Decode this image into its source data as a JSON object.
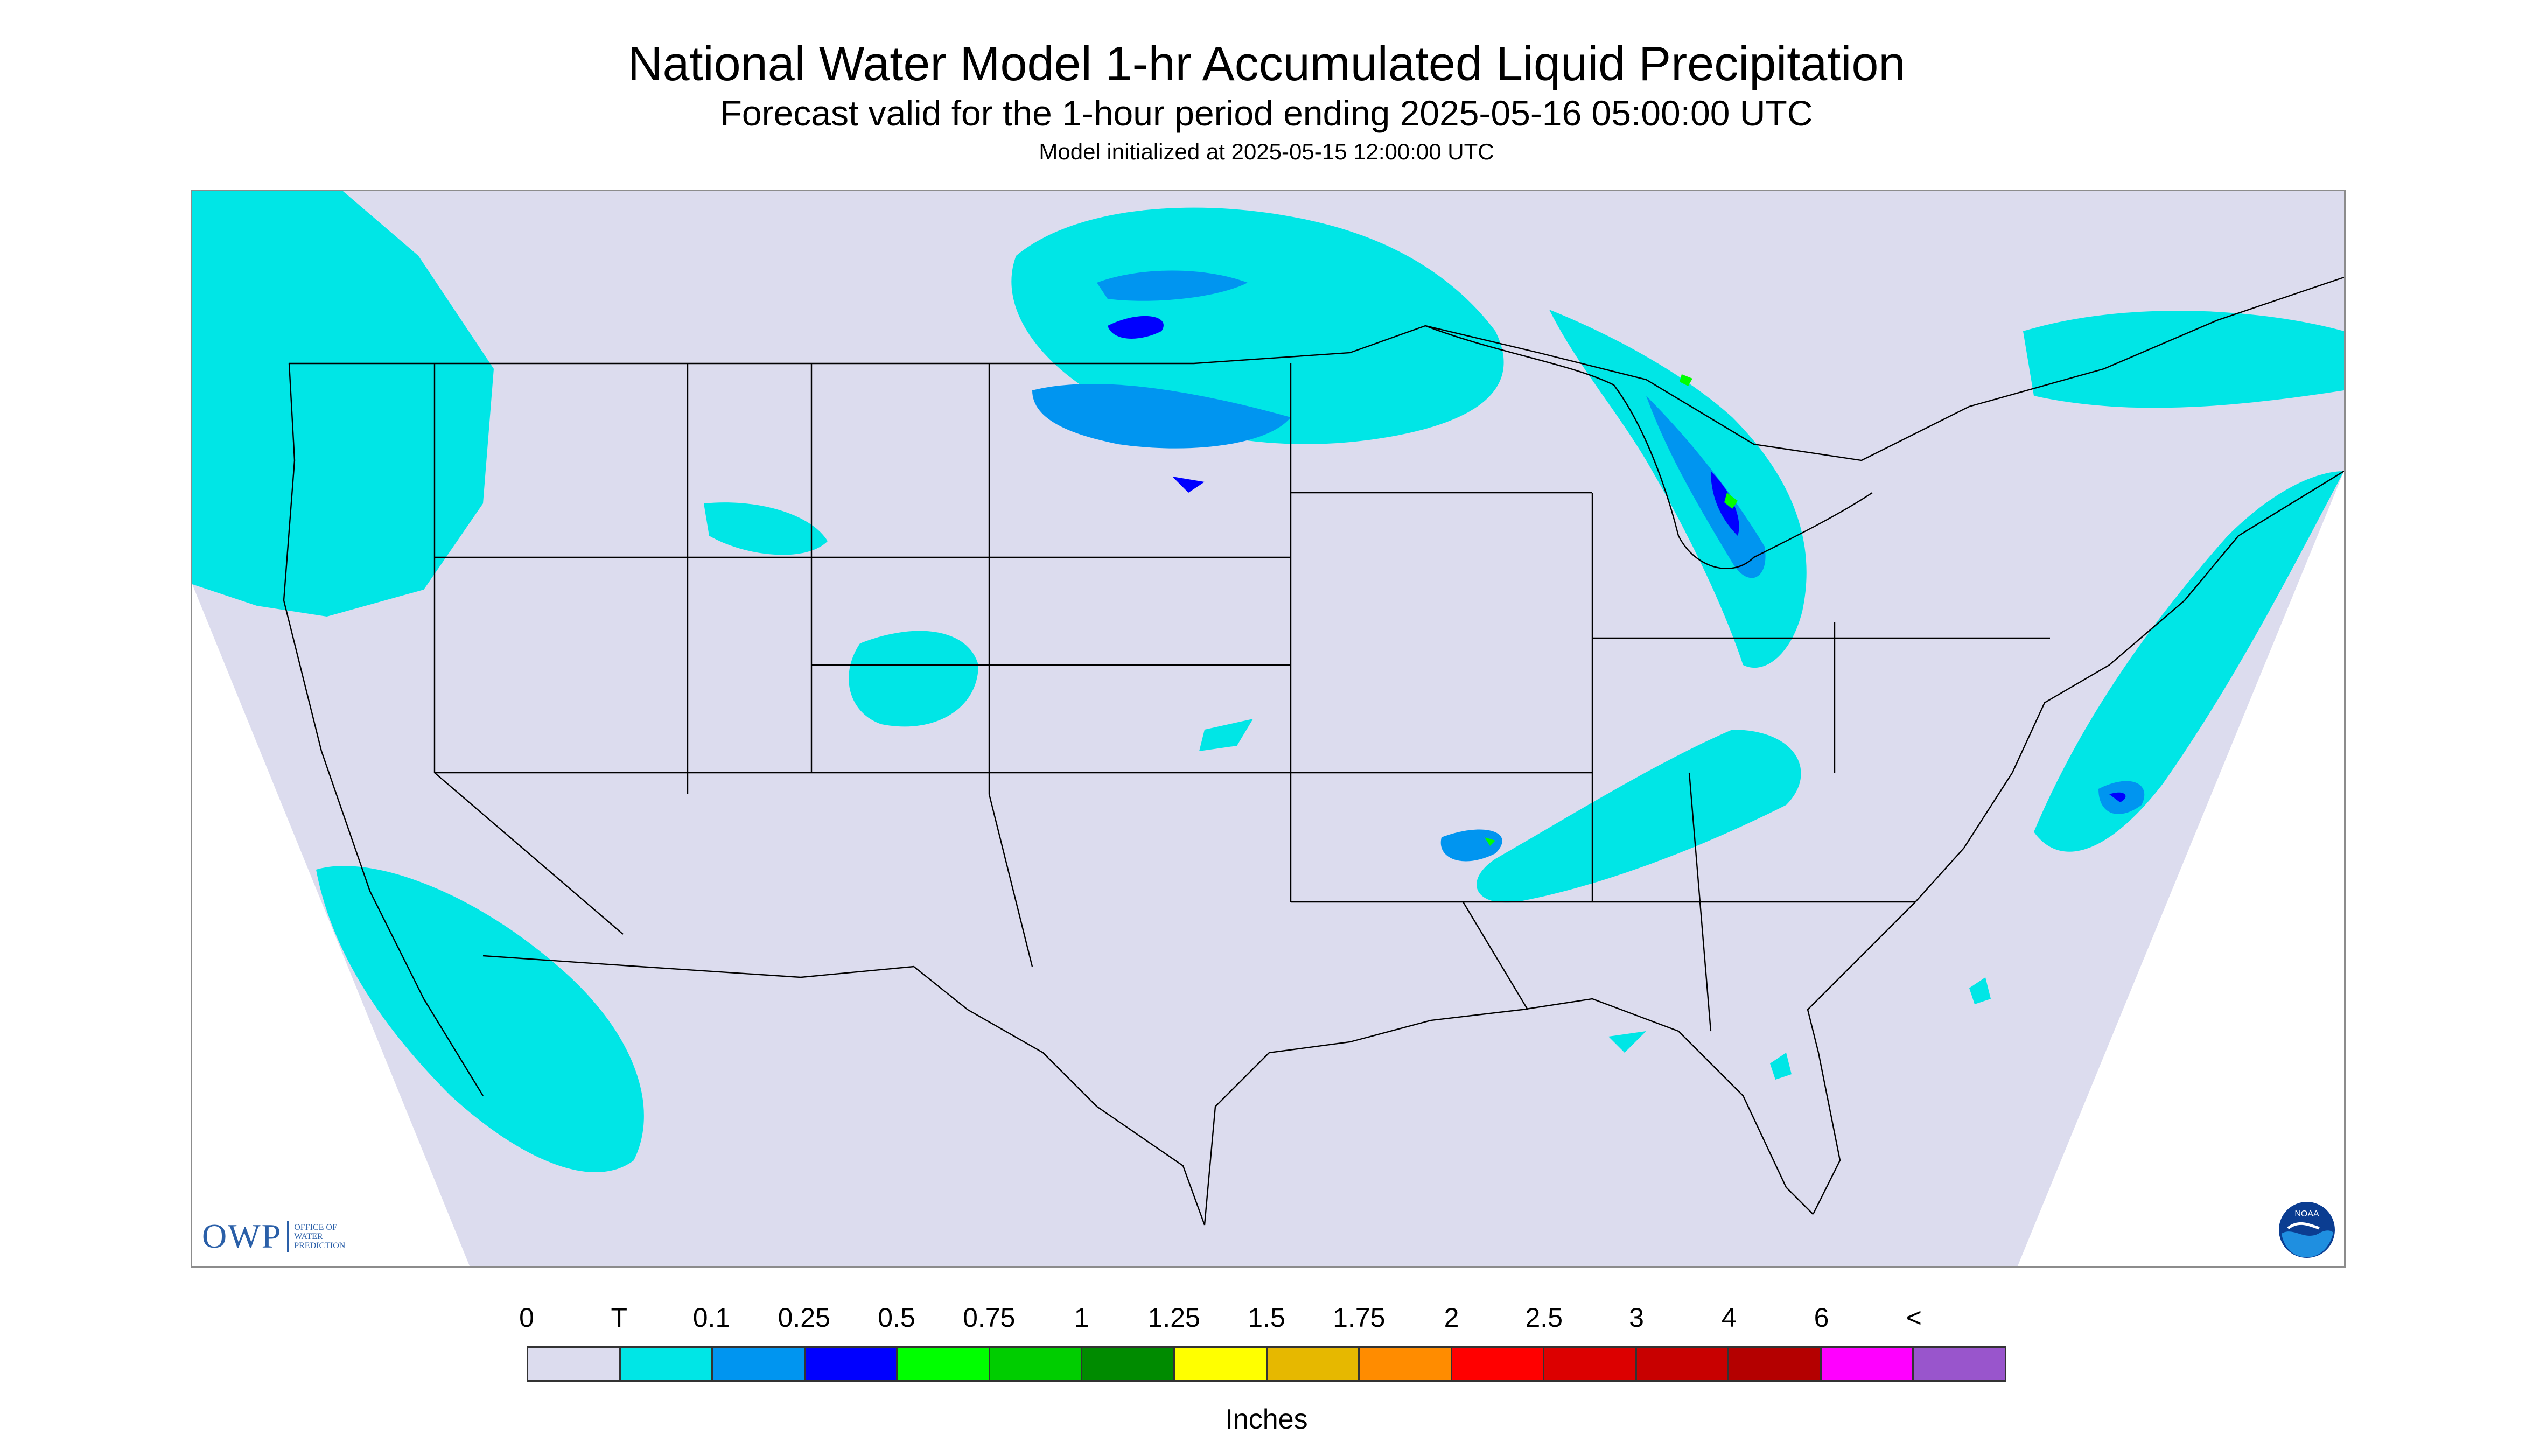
{
  "header": {
    "title": "National Water Model 1-hr Accumulated Liquid Precipitation",
    "subtitle": "Forecast valid for the 1-hour period ending 2025-05-16 05:00:00 UTC",
    "init_line": "Model initialized at 2025-05-15 12:00:00 UTC"
  },
  "map": {
    "region": "Contiguous United States",
    "background_color": "#dcdcee",
    "boundary_color": "#000000",
    "precip_colors": {
      "trace": "#00e6e6",
      "light": "#0095f0",
      "moderate": "#0000ff",
      "heavy": "#00ff00"
    }
  },
  "logos": {
    "owp_main": "OWP",
    "owp_sub_lines": [
      "OFFICE OF",
      "WATER",
      "PREDICTION"
    ],
    "noaa_icon": "noaa-logo-icon",
    "noaa_text": "NOAA"
  },
  "legend": {
    "tick_labels": [
      "0",
      "T",
      "0.1",
      "0.25",
      "0.5",
      "0.75",
      "1",
      "1.25",
      "1.5",
      "1.75",
      "2",
      "2.5",
      "3",
      "4",
      "6",
      "<"
    ],
    "colors": [
      "#dcdcee",
      "#00e6e6",
      "#0095f0",
      "#0000ff",
      "#00ff00",
      "#00cd00",
      "#008b00",
      "#ffff00",
      "#e6b800",
      "#ff8c00",
      "#ff0000",
      "#dc0000",
      "#c80000",
      "#b40000",
      "#ff00ff",
      "#9955cc"
    ],
    "units": "Inches"
  }
}
